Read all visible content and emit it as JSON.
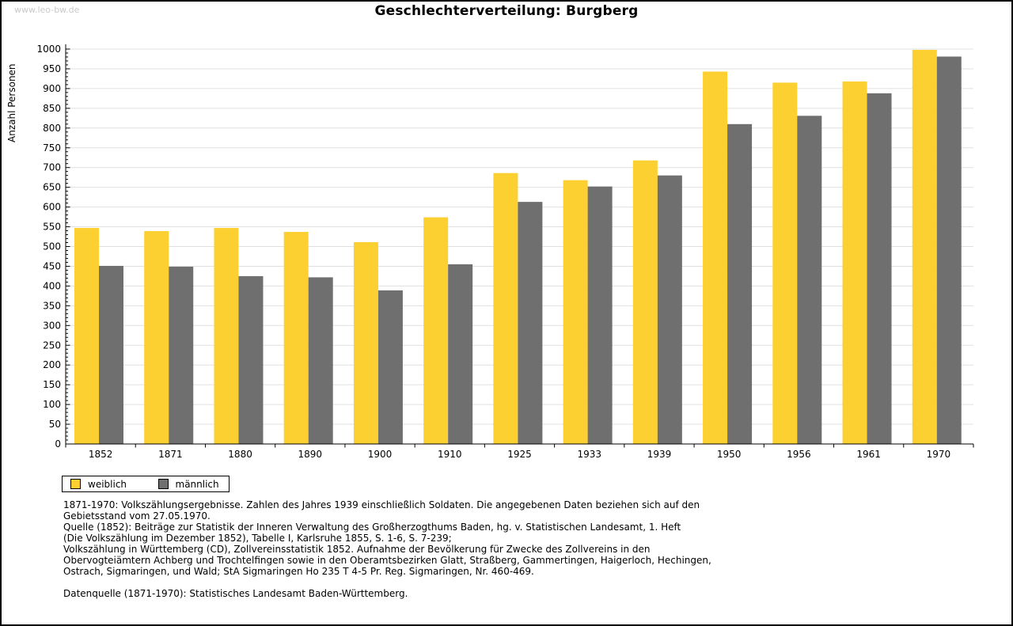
{
  "watermark": "www.leo-bw.de",
  "title": "Geschlechterverteilung: Burgberg",
  "chart_data": {
    "type": "bar",
    "title": "Geschlechterverteilung: Burgberg",
    "xlabel": "",
    "ylabel": "Anzahl Personen",
    "categories": [
      "1852",
      "1871",
      "1880",
      "1890",
      "1900",
      "1910",
      "1925",
      "1933",
      "1939",
      "1950",
      "1956",
      "1961",
      "1970"
    ],
    "series": [
      {
        "name": "weiblich",
        "color": "#FCD030",
        "values": [
          547,
          539,
          547,
          537,
          511,
          574,
          686,
          668,
          718,
          943,
          915,
          918,
          998
        ]
      },
      {
        "name": "männlich",
        "color": "#6F6F6F",
        "values": [
          451,
          449,
          425,
          422,
          389,
          455,
          613,
          652,
          680,
          810,
          831,
          888,
          981
        ]
      }
    ],
    "ylim": [
      0,
      1000
    ],
    "ytick_step": 50,
    "ytick_labels": [
      "0",
      "50",
      "100",
      "150",
      "200",
      "250",
      "300",
      "350",
      "400",
      "450",
      "500",
      "550",
      "600",
      "650",
      "700",
      "750",
      "800",
      "850",
      "900",
      "950",
      "1000"
    ],
    "minor_tick_step": 10,
    "grid": true,
    "grid_color": "#e0e0e0",
    "legend_position": "bottom-left",
    "legend_entries": [
      "weiblich",
      "männlich"
    ]
  },
  "footnotes": {
    "lines": [
      "1871-1970: Volkszählungsergebnisse. Zahlen des Jahres 1939 einschließlich Soldaten. Die angegebenen Daten beziehen sich auf den",
      "Gebietsstand vom 27.05.1970.",
      "Quelle (1852): Beiträge zur Statistik der Inneren Verwaltung des Großherzogthums Baden, hg. v. Statistischen Landesamt, 1. Heft",
      "(Die Volkszählung im Dezember 1852), Tabelle I, Karlsruhe 1855, S. 1-6, S. 7-239;",
      "Volkszählung in Württemberg (CD), Zollvereinsstatistik 1852. Aufnahme der Bevölkerung für Zwecke des Zollvereins in den",
      "Obervogteiämtern Achberg und Trochtelfingen sowie in den Oberamtsbezirken Glatt, Straßberg, Gammertingen, Haigerloch, Hechingen,",
      "Ostrach, Sigmaringen, und Wald; StA Sigmaringen Ho 235 T 4-5 Pr. Reg. Sigmaringen, Nr. 460-469.",
      "",
      "Datenquelle (1871-1970): Statistisches Landesamt Baden-Württemberg."
    ]
  }
}
